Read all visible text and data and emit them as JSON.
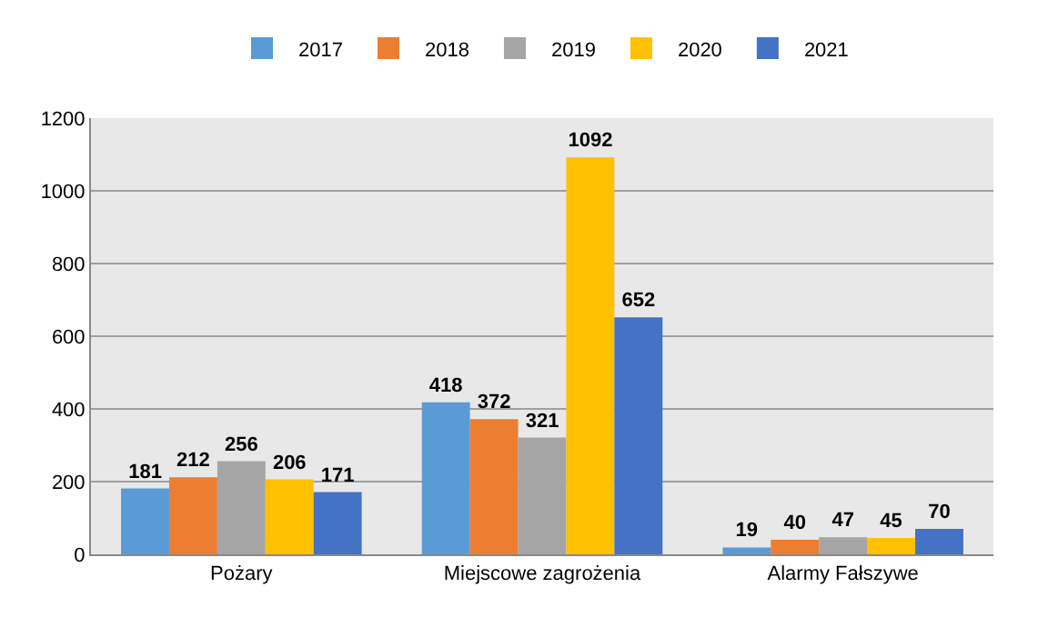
{
  "chart_data": {
    "type": "bar",
    "categories": [
      "Pożary",
      "Miejscowe zagrożenia",
      "Alarmy Fałszywe"
    ],
    "series": [
      {
        "name": "2017",
        "color": "#5b9bd5",
        "values": [
          181,
          418,
          19
        ]
      },
      {
        "name": "2018",
        "color": "#ed7d31",
        "values": [
          212,
          372,
          40
        ]
      },
      {
        "name": "2019",
        "color": "#a5a5a5",
        "values": [
          256,
          321,
          47
        ]
      },
      {
        "name": "2020",
        "color": "#ffc000",
        "values": [
          206,
          1092,
          45
        ]
      },
      {
        "name": "2021",
        "color": "#4472c4",
        "values": [
          171,
          652,
          70
        ]
      }
    ],
    "ylim": [
      0,
      1200
    ],
    "yticks": [
      0,
      200,
      400,
      600,
      800,
      1000,
      1200
    ],
    "grid": "y",
    "legend": "top",
    "data_labels": true
  }
}
